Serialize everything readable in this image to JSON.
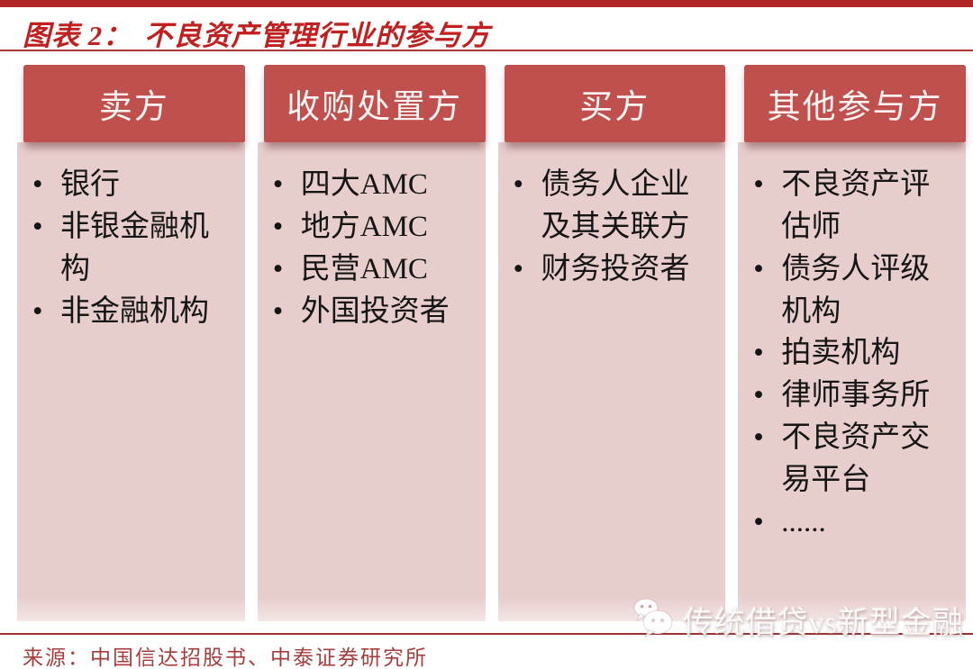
{
  "title": {
    "prefix": "图表 2：",
    "text": "不良资产管理行业的参与方"
  },
  "columns": [
    {
      "header": "卖方",
      "items": [
        "银行",
        "非银金融机构",
        "非金融机构"
      ]
    },
    {
      "header": "收购处置方",
      "items": [
        "四大AMC",
        "地方AMC",
        "民营AMC",
        "外国投资者"
      ]
    },
    {
      "header": "买方",
      "items": [
        "债务人企业及其关联方",
        "财务投资者"
      ]
    },
    {
      "header": "其他参与方",
      "items": [
        "不良资产评估师",
        "债务人评级机构",
        "拍卖机构",
        "律师事务所",
        "不良资产交易平台",
        "......"
      ]
    }
  ],
  "bullet_glyph": "•",
  "source": "来源：中国信达招股书、中泰证券研究所",
  "watermark": {
    "icon": "wechat-icon",
    "text": "传统借贷vs新型金融"
  },
  "colors": {
    "top_bar": "#b12527",
    "title": "#c02020",
    "rule": "#a93a36",
    "header_bg": "#c0504d",
    "header_text": "#fdf4f3",
    "body_bg": "#e7cecd",
    "item_text": "#151515",
    "source_text": "#a63e3b",
    "watermark_text": "#ffffff"
  }
}
